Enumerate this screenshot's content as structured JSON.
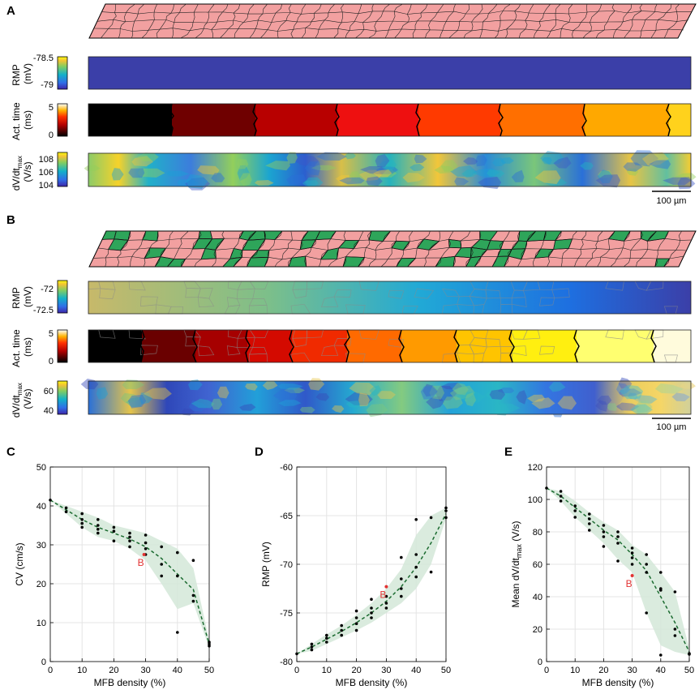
{
  "panels": {
    "A": "A",
    "B": "B",
    "C": "C",
    "D": "D",
    "E": "E"
  },
  "panel_A": {
    "rows": [
      {
        "label_lines": [
          "RMP",
          "(mV)"
        ],
        "ticks": [
          "-78.5",
          "-79"
        ]
      },
      {
        "label_lines": [
          "Act. time",
          "(ms)"
        ],
        "ticks": [
          "5",
          "0"
        ]
      },
      {
        "label_lines": [
          "dV/dt",
          "(V/s)"
        ],
        "label_sub": "max",
        "ticks": [
          "108",
          "106",
          "104"
        ]
      }
    ],
    "scalebar": "100 µm"
  },
  "panel_B": {
    "rows": [
      {
        "label_lines": [
          "RMP",
          "(mV)"
        ],
        "ticks": [
          "-72",
          "-72.5"
        ]
      },
      {
        "label_lines": [
          "Act. time",
          "(ms)"
        ],
        "ticks": [
          "5",
          "0"
        ]
      },
      {
        "label_lines": [
          "dV/dt",
          "(V/s)"
        ],
        "label_sub": "max",
        "ticks": [
          "60",
          "40"
        ]
      }
    ],
    "scalebar": "100 µm"
  },
  "colors": {
    "myocyte": "#f2a0a0",
    "mfb": "#2ea55a",
    "rmp_A": "#3b3fa8",
    "band": "#d3e8d8",
    "fit_line": "#1b6b30",
    "marker_B": "#e23333"
  },
  "chart_data": [
    {
      "type": "scatter",
      "panel": "C",
      "xlabel": "MFB density (%)",
      "ylabel": "CV (cm/s)",
      "xlim": [
        0,
        50
      ],
      "ylim": [
        0,
        50
      ],
      "xticks": [
        0,
        10,
        20,
        30,
        40,
        50
      ],
      "yticks": [
        0,
        10,
        20,
        30,
        40,
        50
      ],
      "points": [
        [
          0,
          41.5
        ],
        [
          5,
          39.5
        ],
        [
          5,
          38.5
        ],
        [
          10,
          38
        ],
        [
          10,
          36.5
        ],
        [
          10,
          35.5
        ],
        [
          10,
          34.5
        ],
        [
          15,
          36.5
        ],
        [
          15,
          35
        ],
        [
          15,
          34
        ],
        [
          15,
          33
        ],
        [
          20,
          34.5
        ],
        [
          20,
          33.5
        ],
        [
          20,
          31
        ],
        [
          25,
          33
        ],
        [
          25,
          32
        ],
        [
          25,
          31
        ],
        [
          25,
          29.5
        ],
        [
          30,
          32.5
        ],
        [
          30,
          30.5
        ],
        [
          30,
          29
        ],
        [
          30,
          27.5
        ],
        [
          35,
          29.5
        ],
        [
          35,
          25
        ],
        [
          35,
          22
        ],
        [
          40,
          28
        ],
        [
          40,
          22
        ],
        [
          40,
          7.5
        ],
        [
          45,
          26
        ],
        [
          45,
          17
        ],
        [
          45,
          15.5
        ],
        [
          50,
          5
        ],
        [
          50,
          4.5
        ],
        [
          50,
          4
        ]
      ],
      "mean_line": {
        "x": [
          0,
          5,
          10,
          15,
          20,
          25,
          30,
          35,
          40,
          45,
          50
        ],
        "y": [
          41.5,
          39,
          36.5,
          34.5,
          33,
          31.5,
          29.5,
          26.5,
          22.5,
          18.5,
          4.5
        ]
      },
      "band": {
        "x": [
          0,
          5,
          10,
          15,
          20,
          25,
          30,
          35,
          40,
          45,
          50
        ],
        "upper": [
          41.5,
          40,
          38.5,
          37,
          35,
          34,
          33,
          31,
          29,
          24,
          5.5
        ],
        "lower": [
          41.5,
          38,
          34.5,
          32,
          31,
          29,
          26,
          20,
          13.5,
          15,
          3.5
        ]
      },
      "highlight": {
        "x": 29.5,
        "y": 27.5,
        "label": "B"
      }
    },
    {
      "type": "scatter",
      "panel": "D",
      "xlabel": "MFB density (%)",
      "ylabel": "RMP (mV)",
      "xlim": [
        0,
        50
      ],
      "ylim": [
        -80,
        -60
      ],
      "xticks": [
        0,
        10,
        20,
        30,
        40,
        50
      ],
      "yticks": [
        -80,
        -75,
        -70,
        -65,
        -60
      ],
      "points": [
        [
          0,
          -79.2
        ],
        [
          5,
          -78.8
        ],
        [
          5,
          -78.5
        ],
        [
          5,
          -78.2
        ],
        [
          10,
          -78
        ],
        [
          10,
          -77.6
        ],
        [
          10,
          -77.3
        ],
        [
          15,
          -77.3
        ],
        [
          15,
          -76.8
        ],
        [
          15,
          -76.3
        ],
        [
          20,
          -76.8
        ],
        [
          20,
          -76.1
        ],
        [
          20,
          -75.5
        ],
        [
          20,
          -74.8
        ],
        [
          25,
          -75.5
        ],
        [
          25,
          -75
        ],
        [
          25,
          -74.5
        ],
        [
          25,
          -73.6
        ],
        [
          30,
          -74.5
        ],
        [
          30,
          -74
        ],
        [
          30,
          -73.3
        ],
        [
          35,
          -73.3
        ],
        [
          35,
          -72.5
        ],
        [
          35,
          -71.5
        ],
        [
          35,
          -69.3
        ],
        [
          40,
          -71.3
        ],
        [
          40,
          -70.3
        ],
        [
          40,
          -69
        ],
        [
          40,
          -65.4
        ],
        [
          45,
          -70.8
        ],
        [
          45,
          -65.2
        ],
        [
          50,
          -65.2
        ],
        [
          50,
          -64.5
        ],
        [
          50,
          -64.2
        ]
      ],
      "mean_line": {
        "x": [
          0,
          5,
          10,
          15,
          20,
          25,
          30,
          35,
          40,
          45,
          50
        ],
        "y": [
          -79.2,
          -78.5,
          -77.7,
          -76.9,
          -76,
          -75,
          -73.8,
          -72.3,
          -70.3,
          -67.8,
          -64.8
        ]
      },
      "band": {
        "x": [
          0,
          5,
          10,
          15,
          20,
          25,
          30,
          35,
          40,
          45,
          50
        ],
        "upper": [
          -79.2,
          -78.2,
          -77.2,
          -76.3,
          -75.2,
          -74,
          -72.5,
          -70.5,
          -67,
          -65,
          -64.2
        ],
        "lower": [
          -79.2,
          -78.9,
          -78.2,
          -77.5,
          -76.8,
          -76,
          -75,
          -74,
          -72.5,
          -70,
          -65.3
        ]
      },
      "highlight": {
        "x": 30,
        "y": -72.3,
        "label": "B"
      }
    },
    {
      "type": "scatter",
      "panel": "E",
      "xlabel": "MFB density (%)",
      "ylabel": "Mean dV/dt",
      "ylabel_sub": "max",
      "ylabel_unit": "(V/s)",
      "xlim": [
        0,
        50
      ],
      "ylim": [
        0,
        120
      ],
      "xticks": [
        0,
        10,
        20,
        30,
        40,
        50
      ],
      "yticks": [
        0,
        20,
        40,
        60,
        80,
        100,
        120
      ],
      "points": [
        [
          0,
          107
        ],
        [
          5,
          105
        ],
        [
          5,
          102
        ],
        [
          5,
          99
        ],
        [
          10,
          96
        ],
        [
          10,
          93
        ],
        [
          10,
          89
        ],
        [
          15,
          91
        ],
        [
          15,
          88
        ],
        [
          15,
          85
        ],
        [
          15,
          81
        ],
        [
          20,
          84
        ],
        [
          20,
          80
        ],
        [
          20,
          77
        ],
        [
          20,
          71
        ],
        [
          25,
          80
        ],
        [
          25,
          77
        ],
        [
          25,
          73
        ],
        [
          25,
          62
        ],
        [
          30,
          70
        ],
        [
          30,
          67
        ],
        [
          30,
          64
        ],
        [
          30,
          60
        ],
        [
          35,
          66
        ],
        [
          35,
          60
        ],
        [
          35,
          55
        ],
        [
          35,
          30
        ],
        [
          40,
          55
        ],
        [
          40,
          45
        ],
        [
          40,
          44
        ],
        [
          40,
          4
        ],
        [
          45,
          43
        ],
        [
          45,
          20
        ],
        [
          45,
          16
        ],
        [
          50,
          5
        ],
        [
          50,
          4.5
        ]
      ],
      "mean_line": {
        "x": [
          0,
          5,
          10,
          15,
          20,
          25,
          30,
          35,
          40,
          45,
          50
        ],
        "y": [
          107,
          102,
          95,
          88,
          81,
          75,
          66,
          56,
          40,
          24,
          6
        ]
      },
      "band": {
        "x": [
          0,
          5,
          10,
          15,
          20,
          25,
          30,
          35,
          40,
          45,
          50
        ],
        "upper": [
          107,
          105,
          99,
          92,
          86,
          81,
          72,
          66,
          55,
          43,
          8
        ],
        "lower": [
          107,
          99,
          89,
          81,
          73,
          63,
          55,
          30,
          10,
          6,
          4
        ]
      },
      "highlight": {
        "x": 30,
        "y": 53,
        "label": "B"
      }
    }
  ]
}
